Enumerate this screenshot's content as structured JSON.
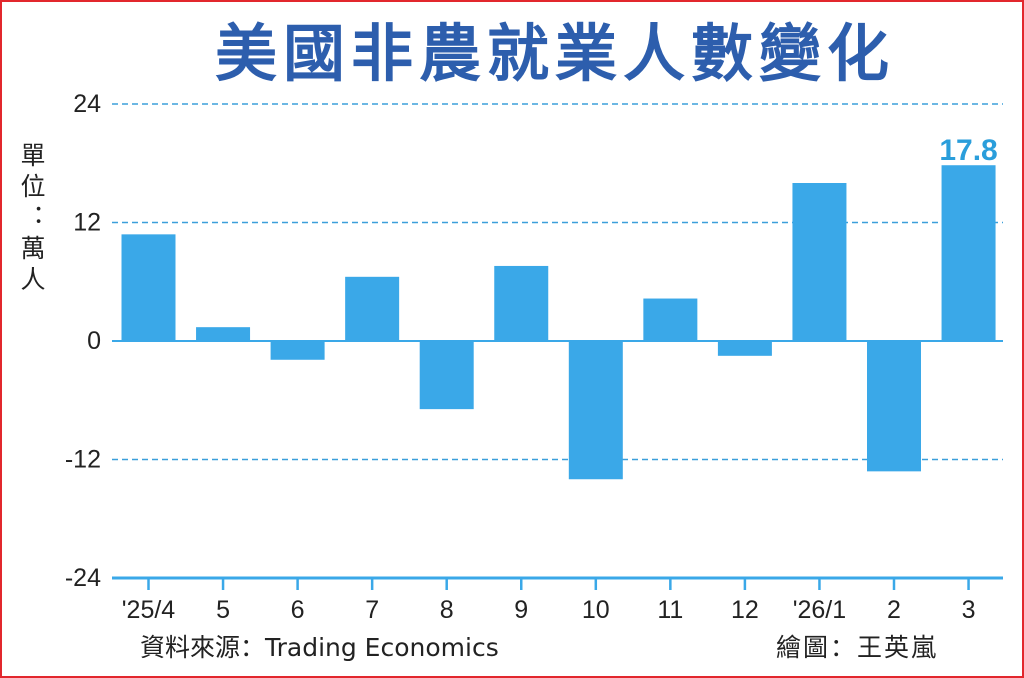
{
  "source": "資料來源：Trading Economics",
  "credit": "繪圖：王英嵐",
  "colors": {
    "bar": "#3aa8e8",
    "grid": "#3b9fda",
    "axis": "#3aa8e8",
    "title": "#2d5ead",
    "data_label": "#2a9edb",
    "text": "#222222",
    "frame": "#e2272d"
  },
  "chart_data": {
    "type": "bar",
    "title": "美國非農就業人數變化",
    "ylabel": "單位：萬人",
    "categories": [
      "'25/4",
      "5",
      "6",
      "7",
      "8",
      "9",
      "10",
      "11",
      "12",
      "'26/1",
      "2",
      "3"
    ],
    "values": [
      10.8,
      1.4,
      -1.9,
      6.5,
      -6.9,
      7.6,
      -14.0,
      4.3,
      -1.5,
      16.0,
      -13.2,
      17.8
    ],
    "ylim": [
      -24,
      24
    ],
    "yticks": [
      24,
      12,
      0,
      -12,
      -24
    ],
    "grid": true,
    "data_labels": [
      {
        "category": "3",
        "text": "17.8"
      }
    ]
  }
}
